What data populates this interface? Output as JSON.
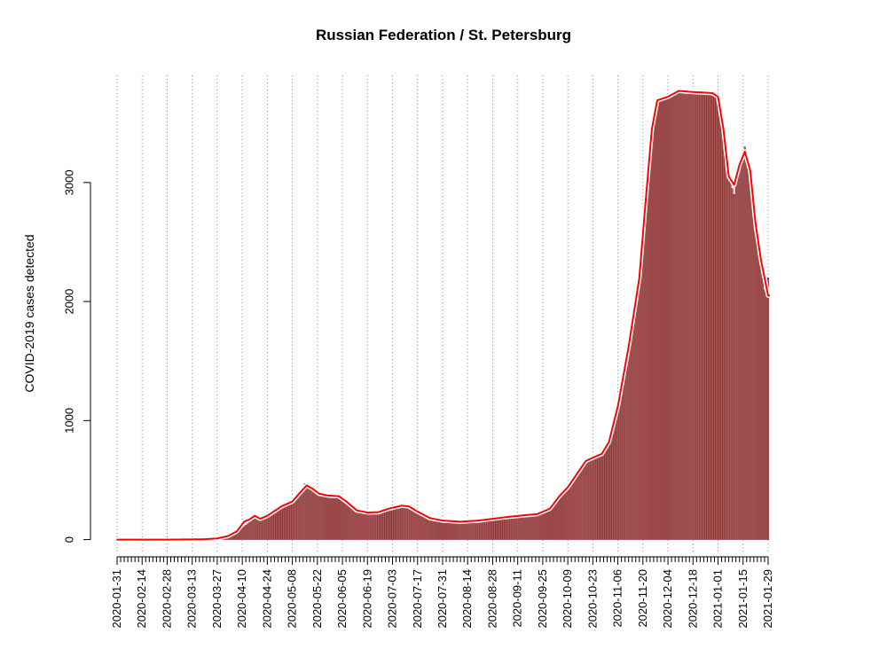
{
  "chart_data": {
    "type": "bar",
    "title": "Russian Federation / St. Petersburg",
    "ylabel": "COVID-2019 cases detected",
    "xlabel": "",
    "x_start_date": "2020-01-31",
    "x_end_date": "2021-01-30",
    "ylim": [
      -100,
      3900
    ],
    "y_ticks": [
      0,
      1000,
      2000,
      3000
    ],
    "y_tick_labels": [
      "0",
      "1000",
      "2000",
      "3000"
    ],
    "x_tick_labels": [
      "2020-01-31",
      "2020-02-14",
      "2020-02-28",
      "2020-03-13",
      "2020-03-27",
      "2020-04-10",
      "2020-04-24",
      "2020-05-08",
      "2020-05-22",
      "2020-06-05",
      "2020-06-19",
      "2020-07-03",
      "2020-07-17",
      "2020-07-31",
      "2020-08-14",
      "2020-08-28",
      "2020-09-11",
      "2020-09-25",
      "2020-10-09",
      "2020-10-23",
      "2020-11-06",
      "2020-11-20",
      "2020-12-04",
      "2020-12-18",
      "2021-01-01",
      "2021-01-15",
      "2021-01-29"
    ],
    "grid": "vertical dotted lines",
    "bar_color": "#a85a5a",
    "bar_border_color": "#7a1a1a",
    "smooth_color": "#ff0000",
    "series": [
      {
        "name": "",
        "style": "bars",
        "keypoints": [
          [
            "2020-01-31",
            0
          ],
          [
            "2020-03-01",
            0
          ],
          [
            "2020-03-20",
            3
          ],
          [
            "2020-03-27",
            8
          ],
          [
            "2020-04-01",
            25
          ],
          [
            "2020-04-06",
            45
          ],
          [
            "2020-04-10",
            100
          ],
          [
            "2020-04-15",
            155
          ],
          [
            "2020-04-18",
            190
          ],
          [
            "2020-04-24",
            200
          ],
          [
            "2020-04-28",
            230
          ],
          [
            "2020-05-03",
            300
          ],
          [
            "2020-05-08",
            320
          ],
          [
            "2020-05-12",
            380
          ],
          [
            "2020-05-15",
            470
          ],
          [
            "2020-05-18",
            430
          ],
          [
            "2020-05-22",
            385
          ],
          [
            "2020-05-27",
            375
          ],
          [
            "2020-06-01",
            360
          ],
          [
            "2020-06-08",
            290
          ],
          [
            "2020-06-13",
            245
          ],
          [
            "2020-06-19",
            230
          ],
          [
            "2020-06-24",
            225
          ],
          [
            "2020-06-29",
            240
          ],
          [
            "2020-07-03",
            268
          ],
          [
            "2020-07-08",
            285
          ],
          [
            "2020-07-12",
            280
          ],
          [
            "2020-07-17",
            230
          ],
          [
            "2020-07-24",
            180
          ],
          [
            "2020-07-31",
            165
          ],
          [
            "2020-08-10",
            158
          ],
          [
            "2020-08-20",
            165
          ],
          [
            "2020-08-28",
            180
          ],
          [
            "2020-09-05",
            195
          ],
          [
            "2020-09-15",
            210
          ],
          [
            "2020-09-22",
            220
          ],
          [
            "2020-09-29",
            280
          ],
          [
            "2020-10-04",
            380
          ],
          [
            "2020-10-09",
            460
          ],
          [
            "2020-10-14",
            560
          ],
          [
            "2020-10-19",
            670
          ],
          [
            "2020-10-24",
            700
          ],
          [
            "2020-10-28",
            730
          ],
          [
            "2020-11-01",
            830
          ],
          [
            "2020-11-06",
            1150
          ],
          [
            "2020-11-12",
            1650
          ],
          [
            "2020-11-18",
            2250
          ],
          [
            "2020-11-21",
            2800
          ],
          [
            "2020-11-25",
            3500
          ],
          [
            "2020-11-28",
            3700
          ],
          [
            "2020-12-04",
            3720
          ],
          [
            "2020-12-10",
            3770
          ],
          [
            "2020-12-18",
            3760
          ],
          [
            "2020-12-25",
            3750
          ],
          [
            "2020-12-29",
            3750
          ],
          [
            "2021-01-01",
            3700
          ],
          [
            "2021-01-04",
            3500
          ],
          [
            "2021-01-07",
            3050
          ],
          [
            "2021-01-10",
            2900
          ],
          [
            "2021-01-13",
            3150
          ],
          [
            "2021-01-16",
            3300
          ],
          [
            "2021-01-19",
            3100
          ],
          [
            "2021-01-22",
            2650
          ],
          [
            "2021-01-25",
            2300
          ],
          [
            "2021-01-27",
            2100
          ],
          [
            "2021-01-29",
            2200
          ]
        ]
      },
      {
        "name": "",
        "style": "smoothed-line",
        "keypoints": [
          [
            "2020-01-31",
            0
          ],
          [
            "2020-03-01",
            0
          ],
          [
            "2020-03-20",
            3
          ],
          [
            "2020-03-27",
            10
          ],
          [
            "2020-04-02",
            30
          ],
          [
            "2020-04-07",
            70
          ],
          [
            "2020-04-11",
            150
          ],
          [
            "2020-04-14",
            170
          ],
          [
            "2020-04-17",
            200
          ],
          [
            "2020-04-20",
            175
          ],
          [
            "2020-04-24",
            200
          ],
          [
            "2020-04-28",
            240
          ],
          [
            "2020-05-02",
            280
          ],
          [
            "2020-05-08",
            320
          ],
          [
            "2020-05-12",
            390
          ],
          [
            "2020-05-16",
            455
          ],
          [
            "2020-05-19",
            430
          ],
          [
            "2020-05-23",
            385
          ],
          [
            "2020-05-28",
            370
          ],
          [
            "2020-06-03",
            365
          ],
          [
            "2020-06-08",
            310
          ],
          [
            "2020-06-13",
            245
          ],
          [
            "2020-06-19",
            228
          ],
          [
            "2020-06-25",
            230
          ],
          [
            "2020-07-01",
            260
          ],
          [
            "2020-07-08",
            285
          ],
          [
            "2020-07-12",
            280
          ],
          [
            "2020-07-17",
            235
          ],
          [
            "2020-07-24",
            180
          ],
          [
            "2020-07-31",
            160
          ],
          [
            "2020-08-10",
            150
          ],
          [
            "2020-08-20",
            160
          ],
          [
            "2020-08-28",
            175
          ],
          [
            "2020-09-05",
            190
          ],
          [
            "2020-09-15",
            205
          ],
          [
            "2020-09-22",
            215
          ],
          [
            "2020-09-29",
            260
          ],
          [
            "2020-10-04",
            360
          ],
          [
            "2020-10-09",
            440
          ],
          [
            "2020-10-14",
            550
          ],
          [
            "2020-10-19",
            660
          ],
          [
            "2020-10-24",
            695
          ],
          [
            "2020-10-28",
            720
          ],
          [
            "2020-11-01",
            820
          ],
          [
            "2020-11-06",
            1120
          ],
          [
            "2020-11-12",
            1620
          ],
          [
            "2020-11-18",
            2200
          ],
          [
            "2020-11-21",
            2750
          ],
          [
            "2020-11-25",
            3450
          ],
          [
            "2020-11-28",
            3690
          ],
          [
            "2020-12-04",
            3720
          ],
          [
            "2020-12-10",
            3770
          ],
          [
            "2020-12-18",
            3760
          ],
          [
            "2020-12-25",
            3755
          ],
          [
            "2020-12-29",
            3750
          ],
          [
            "2021-01-01",
            3720
          ],
          [
            "2021-01-04",
            3450
          ],
          [
            "2021-01-07",
            3050
          ],
          [
            "2021-01-10",
            2980
          ],
          [
            "2021-01-13",
            3150
          ],
          [
            "2021-01-16",
            3260
          ],
          [
            "2021-01-19",
            3100
          ],
          [
            "2021-01-22",
            2650
          ],
          [
            "2021-01-25",
            2350
          ],
          [
            "2021-01-29",
            2050
          ]
        ]
      }
    ]
  }
}
